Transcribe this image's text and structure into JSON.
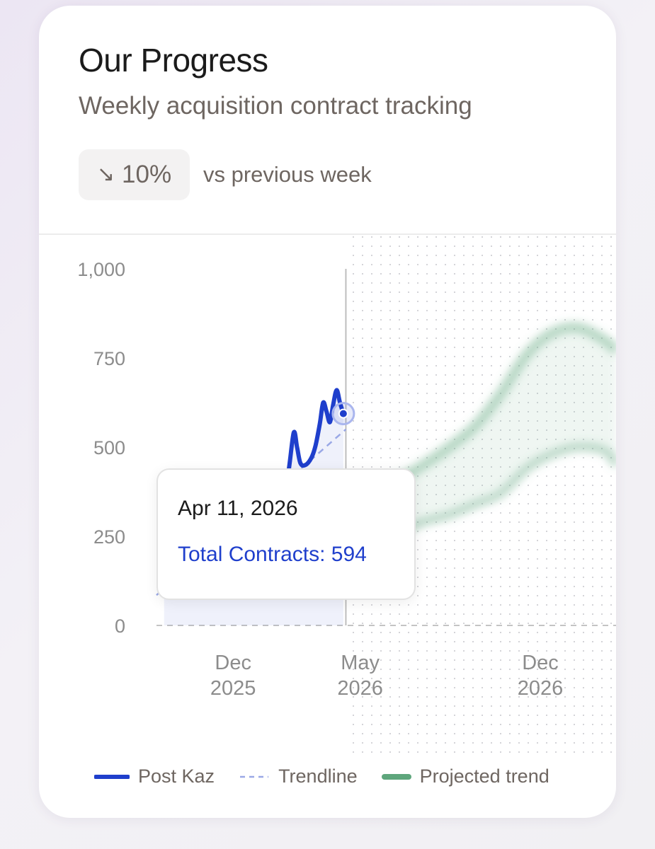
{
  "header": {
    "title": "Our Progress",
    "subtitle": "Weekly acquisition contract tracking",
    "change_arrow": "↘",
    "change_value": "10%",
    "change_label": "vs previous week"
  },
  "tooltip": {
    "date": "Apr 11, 2026",
    "value_label": "Total Contracts: 594"
  },
  "legend": {
    "items": [
      {
        "label": "Post Kaz",
        "style": "solid",
        "color": "#1f3fcc"
      },
      {
        "label": "Trendline",
        "style": "dashed",
        "color": "#9aa8e6"
      },
      {
        "label": "Projected trend",
        "style": "band",
        "color": "#5ea67c"
      }
    ]
  },
  "colors": {
    "actual": "#1f3fcc",
    "trendline": "#9aa8e6",
    "projected": "#5ea67c",
    "text_muted": "#6e6661"
  },
  "chart_data": {
    "type": "line",
    "title": "",
    "xlabel": "",
    "ylabel": "",
    "ylim": [
      0,
      1000
    ],
    "y_ticks": [
      0,
      250,
      500,
      750,
      1000
    ],
    "y_tick_labels": [
      "0",
      "250",
      "500",
      "750",
      "1,000"
    ],
    "x_range": [
      "2025-09-01",
      "2027-03-01"
    ],
    "x_ticks": [
      {
        "date": "2025-12-01",
        "month": "Dec",
        "year": "2025"
      },
      {
        "date": "2026-05-01",
        "month": "May",
        "year": "2026"
      },
      {
        "date": "2026-12-01",
        "month": "Dec",
        "year": "2026"
      }
    ],
    "today": "2026-04-14",
    "highlight": {
      "date": "2026-04-11",
      "value": 594
    },
    "series": [
      {
        "name": "Post Kaz",
        "kind": "actual",
        "points": [
          [
            "2025-09-10",
            85
          ],
          [
            "2025-09-24",
            110
          ],
          [
            "2025-10-08",
            140
          ],
          [
            "2025-10-22",
            175
          ],
          [
            "2025-11-05",
            210
          ],
          [
            "2025-11-19",
            245
          ],
          [
            "2025-12-03",
            285
          ],
          [
            "2025-12-17",
            320
          ],
          [
            "2025-12-31",
            345
          ],
          [
            "2026-01-14",
            370
          ],
          [
            "2026-01-28",
            395
          ],
          [
            "2026-02-04",
            420
          ],
          [
            "2026-02-11",
            540
          ],
          [
            "2026-02-15",
            500
          ],
          [
            "2026-02-19",
            455
          ],
          [
            "2026-02-25",
            450
          ],
          [
            "2026-03-04",
            470
          ],
          [
            "2026-03-09",
            505
          ],
          [
            "2026-03-14",
            565
          ],
          [
            "2026-03-18",
            625
          ],
          [
            "2026-03-22",
            600
          ],
          [
            "2026-03-26",
            570
          ],
          [
            "2026-03-30",
            620
          ],
          [
            "2026-04-03",
            660
          ],
          [
            "2026-04-07",
            625
          ],
          [
            "2026-04-11",
            594
          ]
        ]
      },
      {
        "name": "Trendline",
        "kind": "trend",
        "points": [
          [
            "2025-09-01",
            85
          ],
          [
            "2026-04-14",
            550
          ]
        ]
      },
      {
        "name": "Projected trend",
        "kind": "projection",
        "upper": [
          [
            "2026-04-14",
            350
          ],
          [
            "2026-05-15",
            390
          ],
          [
            "2026-06-15",
            410
          ],
          [
            "2026-07-15",
            450
          ],
          [
            "2026-08-15",
            500
          ],
          [
            "2026-09-15",
            560
          ],
          [
            "2026-10-15",
            650
          ],
          [
            "2026-11-15",
            760
          ],
          [
            "2026-12-15",
            820
          ],
          [
            "2027-01-15",
            835
          ],
          [
            "2027-02-15",
            800
          ],
          [
            "2027-03-01",
            770
          ]
        ],
        "lower": [
          [
            "2026-04-14",
            200
          ],
          [
            "2026-05-15",
            240
          ],
          [
            "2026-06-15",
            260
          ],
          [
            "2026-07-15",
            290
          ],
          [
            "2026-08-15",
            310
          ],
          [
            "2026-09-15",
            340
          ],
          [
            "2026-10-15",
            370
          ],
          [
            "2026-11-15",
            440
          ],
          [
            "2026-12-15",
            480
          ],
          [
            "2027-01-15",
            500
          ],
          [
            "2027-02-15",
            490
          ],
          [
            "2027-03-01",
            450
          ]
        ]
      }
    ]
  }
}
